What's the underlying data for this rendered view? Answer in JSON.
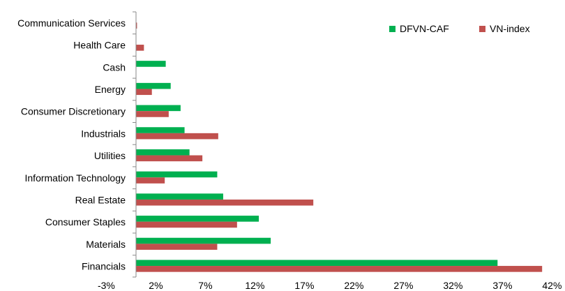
{
  "chart_data": {
    "type": "bar",
    "orientation": "horizontal",
    "categories": [
      "Communication Services",
      "Health Care",
      "Cash",
      "Energy",
      "Consumer Discretionary",
      "Industrials",
      "Utilities",
      "Information Technology",
      "Real Estate",
      "Consumer Staples",
      "Materials",
      "Financials"
    ],
    "series": [
      {
        "name": "DFVN-CAF",
        "color": "#00b050",
        "values": [
          0,
          0,
          3.0,
          3.5,
          4.5,
          4.9,
          5.4,
          8.2,
          8.8,
          12.4,
          13.6,
          36.5
        ]
      },
      {
        "name": "VN-index",
        "color": "#c0504d",
        "values": [
          0.1,
          0.8,
          0,
          1.6,
          3.3,
          8.3,
          6.7,
          2.9,
          17.9,
          10.2,
          8.2,
          41.0
        ]
      }
    ],
    "xlim": [
      -3,
      42
    ],
    "x_ticks": [
      "-3%",
      "2%",
      "7%",
      "12%",
      "17%",
      "22%",
      "27%",
      "32%",
      "37%",
      "42%"
    ],
    "x_tick_values": [
      -3,
      2,
      7,
      12,
      17,
      22,
      27,
      32,
      37,
      42
    ],
    "grid": false,
    "legend": "top-right"
  }
}
